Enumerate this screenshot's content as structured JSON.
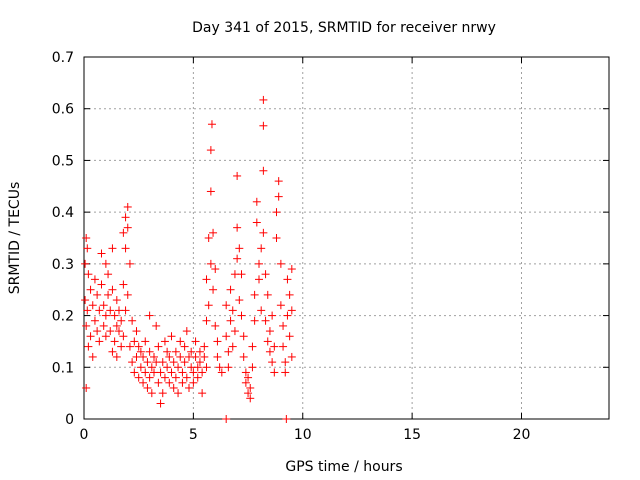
{
  "chart_data": {
    "type": "scatter",
    "title": "Day 341 of 2015, SRMTID for receiver nrwy",
    "xlabel": "GPS time / hours",
    "ylabel": "SRMTID / TECUs",
    "xlim": [
      0,
      24
    ],
    "ylim": [
      0,
      0.7
    ],
    "xticks": [
      0,
      5,
      10,
      15,
      20
    ],
    "yticks": [
      0,
      0.1,
      0.2,
      0.3,
      0.4,
      0.5,
      0.6,
      0.7
    ],
    "grid": true,
    "legend": "none",
    "marker": "plus",
    "color": "#ff0000",
    "series": [
      {
        "points": [
          [
            0.05,
            0.3
          ],
          [
            0.05,
            0.23
          ],
          [
            0.1,
            0.35
          ],
          [
            0.1,
            0.18
          ],
          [
            0.1,
            0.06
          ],
          [
            0.15,
            0.33
          ],
          [
            0.15,
            0.21
          ],
          [
            0.2,
            0.28
          ],
          [
            0.2,
            0.14
          ],
          [
            0.3,
            0.25
          ],
          [
            0.3,
            0.16
          ],
          [
            0.4,
            0.22
          ],
          [
            0.4,
            0.12
          ],
          [
            0.5,
            0.27
          ],
          [
            0.5,
            0.19
          ],
          [
            0.6,
            0.24
          ],
          [
            0.6,
            0.17
          ],
          [
            0.7,
            0.21
          ],
          [
            0.7,
            0.15
          ],
          [
            0.8,
            0.26
          ],
          [
            0.8,
            0.32
          ],
          [
            0.9,
            0.22
          ],
          [
            0.9,
            0.18
          ],
          [
            1.0,
            0.3
          ],
          [
            1.0,
            0.2
          ],
          [
            1.0,
            0.16
          ],
          [
            1.1,
            0.24
          ],
          [
            1.1,
            0.28
          ],
          [
            1.2,
            0.21
          ],
          [
            1.2,
            0.17
          ],
          [
            1.3,
            0.33
          ],
          [
            1.3,
            0.25
          ],
          [
            1.3,
            0.13
          ],
          [
            1.4,
            0.2
          ],
          [
            1.4,
            0.15
          ],
          [
            1.5,
            0.23
          ],
          [
            1.5,
            0.18
          ],
          [
            1.5,
            0.12
          ],
          [
            1.6,
            0.21
          ],
          [
            1.6,
            0.17
          ],
          [
            1.7,
            0.19
          ],
          [
            1.7,
            0.14
          ],
          [
            1.8,
            0.36
          ],
          [
            1.8,
            0.26
          ],
          [
            1.8,
            0.16
          ],
          [
            1.9,
            0.39
          ],
          [
            1.9,
            0.33
          ],
          [
            1.9,
            0.21
          ],
          [
            2.0,
            0.41
          ],
          [
            2.0,
            0.37
          ],
          [
            2.0,
            0.24
          ],
          [
            2.1,
            0.3
          ],
          [
            2.1,
            0.14
          ],
          [
            2.2,
            0.19
          ],
          [
            2.2,
            0.11
          ],
          [
            2.3,
            0.15
          ],
          [
            2.3,
            0.09
          ],
          [
            2.4,
            0.17
          ],
          [
            2.4,
            0.12
          ],
          [
            2.5,
            0.14
          ],
          [
            2.5,
            0.08
          ],
          [
            2.6,
            0.13
          ],
          [
            2.6,
            0.1
          ],
          [
            2.7,
            0.12
          ],
          [
            2.7,
            0.07
          ],
          [
            2.8,
            0.15
          ],
          [
            2.8,
            0.09
          ],
          [
            2.9,
            0.11
          ],
          [
            2.9,
            0.06
          ],
          [
            3.0,
            0.13
          ],
          [
            3.0,
            0.2
          ],
          [
            3.0,
            0.08
          ],
          [
            3.1,
            0.1
          ],
          [
            3.1,
            0.05
          ],
          [
            3.2,
            0.12
          ],
          [
            3.2,
            0.09
          ],
          [
            3.3,
            0.18
          ],
          [
            3.3,
            0.11
          ],
          [
            3.4,
            0.14
          ],
          [
            3.4,
            0.07
          ],
          [
            3.5,
            0.09
          ],
          [
            3.5,
            0.03
          ],
          [
            3.6,
            0.11
          ],
          [
            3.6,
            0.05
          ],
          [
            3.7,
            0.15
          ],
          [
            3.7,
            0.08
          ],
          [
            3.8,
            0.1
          ],
          [
            3.8,
            0.13
          ],
          [
            3.9,
            0.07
          ],
          [
            3.9,
            0.12
          ],
          [
            4.0,
            0.09
          ],
          [
            4.0,
            0.16
          ],
          [
            4.1,
            0.11
          ],
          [
            4.1,
            0.06
          ],
          [
            4.2,
            0.13
          ],
          [
            4.2,
            0.08
          ],
          [
            4.3,
            0.1
          ],
          [
            4.3,
            0.05
          ],
          [
            4.4,
            0.12
          ],
          [
            4.4,
            0.15
          ],
          [
            4.5,
            0.09
          ],
          [
            4.5,
            0.07
          ],
          [
            4.6,
            0.14
          ],
          [
            4.6,
            0.11
          ],
          [
            4.7,
            0.17
          ],
          [
            4.7,
            0.08
          ],
          [
            4.8,
            0.12
          ],
          [
            4.8,
            0.06
          ],
          [
            4.9,
            0.1
          ],
          [
            4.9,
            0.13
          ],
          [
            5.0,
            0.09
          ],
          [
            5.0,
            0.07
          ],
          [
            5.1,
            0.12
          ],
          [
            5.1,
            0.15
          ],
          [
            5.2,
            0.1
          ],
          [
            5.2,
            0.08
          ],
          [
            5.3,
            0.13
          ],
          [
            5.3,
            0.11
          ],
          [
            5.4,
            0.09
          ],
          [
            5.4,
            0.05
          ],
          [
            5.5,
            0.14
          ],
          [
            5.5,
            0.12
          ],
          [
            5.6,
            0.27
          ],
          [
            5.6,
            0.19
          ],
          [
            5.6,
            0.1
          ],
          [
            5.7,
            0.35
          ],
          [
            5.7,
            0.22
          ],
          [
            5.8,
            0.44
          ],
          [
            5.8,
            0.3
          ],
          [
            5.8,
            0.52
          ],
          [
            5.85,
            0.57
          ],
          [
            5.9,
            0.36
          ],
          [
            5.9,
            0.25
          ],
          [
            6.0,
            0.29
          ],
          [
            6.0,
            0.18
          ],
          [
            6.1,
            0.15
          ],
          [
            6.1,
            0.12
          ],
          [
            6.2,
            0.1
          ],
          [
            6.3,
            0.09
          ],
          [
            6.5,
            0.22
          ],
          [
            6.5,
            0.16
          ],
          [
            6.6,
            0.13
          ],
          [
            6.6,
            0.1
          ],
          [
            6.7,
            0.19
          ],
          [
            6.7,
            0.25
          ],
          [
            6.8,
            0.14
          ],
          [
            6.8,
            0.21
          ],
          [
            6.9,
            0.28
          ],
          [
            6.9,
            0.17
          ],
          [
            7.0,
            0.37
          ],
          [
            7.0,
            0.31
          ],
          [
            7.0,
            0.47
          ],
          [
            7.1,
            0.33
          ],
          [
            7.1,
            0.23
          ],
          [
            7.2,
            0.28
          ],
          [
            7.2,
            0.2
          ],
          [
            7.3,
            0.16
          ],
          [
            7.3,
            0.12
          ],
          [
            7.4,
            0.09
          ],
          [
            7.4,
            0.07
          ],
          [
            7.5,
            0.08
          ],
          [
            7.5,
            0.05
          ],
          [
            7.6,
            0.06
          ],
          [
            7.6,
            0.04
          ],
          [
            7.7,
            0.14
          ],
          [
            7.7,
            0.1
          ],
          [
            7.8,
            0.19
          ],
          [
            7.8,
            0.24
          ],
          [
            7.9,
            0.38
          ],
          [
            7.9,
            0.42
          ],
          [
            8.0,
            0.3
          ],
          [
            8.0,
            0.27
          ],
          [
            8.1,
            0.33
          ],
          [
            8.1,
            0.21
          ],
          [
            8.2,
            0.48
          ],
          [
            8.2,
            0.36
          ],
          [
            8.3,
            0.28
          ],
          [
            8.3,
            0.19
          ],
          [
            8.4,
            0.24
          ],
          [
            8.4,
            0.15
          ],
          [
            8.5,
            0.17
          ],
          [
            8.5,
            0.13
          ],
          [
            8.6,
            0.2
          ],
          [
            8.6,
            0.11
          ],
          [
            8.7,
            0.14
          ],
          [
            8.7,
            0.09
          ],
          [
            8.8,
            0.4
          ],
          [
            8.8,
            0.35
          ],
          [
            8.9,
            0.46
          ],
          [
            8.9,
            0.43
          ],
          [
            9.0,
            0.3
          ],
          [
            9.0,
            0.22
          ],
          [
            9.1,
            0.18
          ],
          [
            9.1,
            0.14
          ],
          [
            9.2,
            0.11
          ],
          [
            9.2,
            0.09
          ],
          [
            9.3,
            0.27
          ],
          [
            9.3,
            0.2
          ],
          [
            9.4,
            0.24
          ],
          [
            9.4,
            0.16
          ],
          [
            9.5,
            0.29
          ],
          [
            9.5,
            0.21
          ],
          [
            9.5,
            0.12
          ],
          [
            8.2,
            0.617
          ],
          [
            8.2,
            0.567
          ],
          [
            6.5,
            0.0
          ],
          [
            9.25,
            0.0
          ]
        ]
      }
    ]
  }
}
